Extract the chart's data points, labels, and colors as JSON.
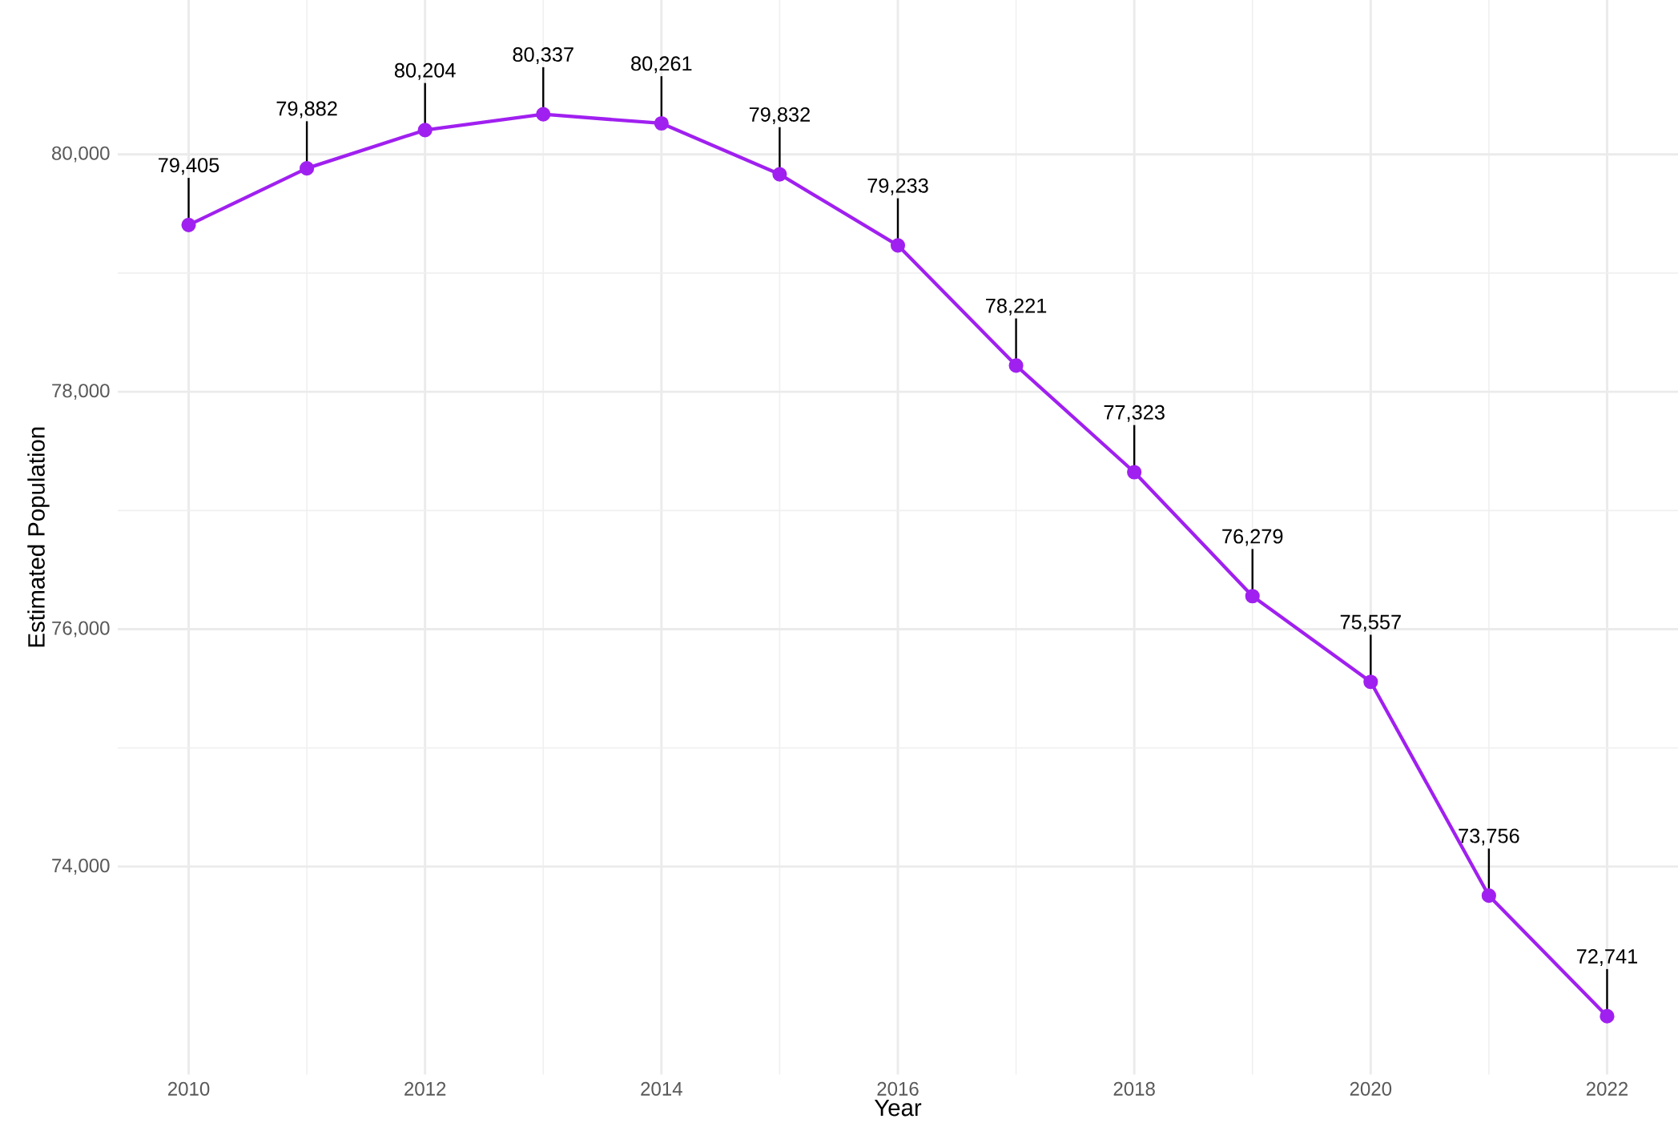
{
  "chart_data": {
    "type": "line",
    "xlabel": "Year",
    "ylabel": "Estimated Population",
    "x": [
      2010,
      2011,
      2012,
      2013,
      2014,
      2015,
      2016,
      2017,
      2018,
      2019,
      2020,
      2021,
      2022
    ],
    "values": [
      79405,
      79882,
      80204,
      80337,
      80261,
      79832,
      79233,
      78221,
      77323,
      76279,
      75557,
      73756,
      72741
    ],
    "value_labels": [
      "79,405",
      "79,882",
      "80,204",
      "80,337",
      "80,261",
      "79,832",
      "79,233",
      "78,221",
      "77,323",
      "76,279",
      "75,557",
      "73,756",
      "72,741"
    ],
    "color": "#a020f0",
    "marker": "circle",
    "line_style": "solid",
    "grid": true,
    "xlim": [
      2009.4,
      2022.6
    ],
    "ylim": [
      72250,
      81300
    ],
    "xticks": [
      2010,
      2012,
      2014,
      2016,
      2018,
      2020,
      2022
    ],
    "yticks": [
      {
        "value": 74000,
        "label": "74,000"
      },
      {
        "value": 76000,
        "label": "76,000"
      },
      {
        "value": 78000,
        "label": "78,000"
      },
      {
        "value": 80000,
        "label": "80,000"
      }
    ]
  }
}
